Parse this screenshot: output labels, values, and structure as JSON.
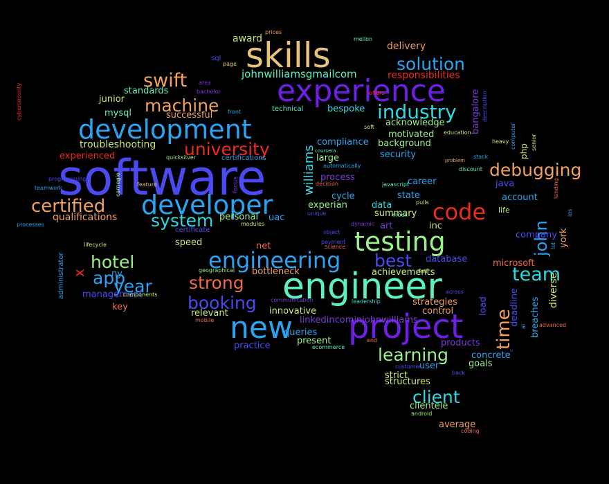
{
  "colors": {
    "bg": "#000000",
    "blue": "#4a4af0",
    "violet": "#6e1fe6",
    "skyblue": "#2ba3f0",
    "cyan": "#2fd8e0",
    "mint": "#5ef0c0",
    "green": "#9cf28a",
    "lime": "#c8e87a",
    "tan": "#e6c27a",
    "orange": "#f0a060",
    "red": "#ee2a20",
    "coral": "#f06848",
    "purple": "#7a3ad8"
  },
  "words": [
    {
      "text": "software",
      "color": "blue"
    },
    {
      "text": "engineer",
      "color": "mint"
    },
    {
      "text": "skills",
      "color": "tan"
    },
    {
      "text": "experience",
      "color": "violet"
    },
    {
      "text": "project",
      "color": "violet"
    },
    {
      "text": "development",
      "color": "skyblue"
    },
    {
      "text": "developer",
      "color": "skyblue"
    },
    {
      "text": "new",
      "color": "skyblue"
    },
    {
      "text": "testing",
      "color": "green"
    },
    {
      "text": "engineering",
      "color": "skyblue"
    },
    {
      "text": "code",
      "color": "red"
    },
    {
      "text": "industry",
      "color": "cyan"
    },
    {
      "text": "solution",
      "color": "skyblue"
    },
    {
      "text": "certified",
      "color": "orange"
    },
    {
      "text": "university",
      "color": "red"
    },
    {
      "text": "machine",
      "color": "orange"
    },
    {
      "text": "swift",
      "color": "orange"
    },
    {
      "text": "system",
      "color": "cyan"
    },
    {
      "text": "hotel",
      "color": "green"
    },
    {
      "text": "booking",
      "color": "blue"
    },
    {
      "text": "strong",
      "color": "coral"
    },
    {
      "text": "year",
      "color": "skyblue"
    },
    {
      "text": "best",
      "color": "blue"
    },
    {
      "text": "learning",
      "color": "green"
    },
    {
      "text": "client",
      "color": "cyan"
    },
    {
      "text": "debugging",
      "color": "orange"
    },
    {
      "text": "team",
      "color": "cyan"
    },
    {
      "text": "app",
      "color": "skyblue"
    },
    {
      "text": "time",
      "color": "orange"
    },
    {
      "text": "john",
      "color": "skyblue"
    },
    {
      "text": "x",
      "color": "red"
    },
    {
      "text": "williams",
      "color": "cyan"
    },
    {
      "text": "johnwilliamsgmailcom",
      "color": "mint"
    },
    {
      "text": "responsibilities",
      "color": "red"
    },
    {
      "text": "award",
      "color": "lime"
    },
    {
      "text": "delivery",
      "color": "orange"
    },
    {
      "text": "standards",
      "color": "mint"
    },
    {
      "text": "junior",
      "color": "lime"
    },
    {
      "text": "mysql",
      "color": "mint"
    },
    {
      "text": "successful",
      "color": "orange"
    },
    {
      "text": "troubleshooting",
      "color": "lime"
    },
    {
      "text": "experienced",
      "color": "red"
    },
    {
      "text": "qualifications",
      "color": "orange"
    },
    {
      "text": "bespoke",
      "color": "cyan"
    },
    {
      "text": "technical",
      "color": "mint"
    },
    {
      "text": "acknowledge",
      "color": "green"
    },
    {
      "text": "motivated",
      "color": "green"
    },
    {
      "text": "background",
      "color": "green"
    },
    {
      "text": "security",
      "color": "skyblue"
    },
    {
      "text": "compliance",
      "color": "skyblue"
    },
    {
      "text": "large",
      "color": "green"
    },
    {
      "text": "process",
      "color": "purple"
    },
    {
      "text": "career",
      "color": "skyblue"
    },
    {
      "text": "state",
      "color": "skyblue"
    },
    {
      "text": "experian",
      "color": "green"
    },
    {
      "text": "cycle",
      "color": "skyblue"
    },
    {
      "text": "data",
      "color": "cyan"
    },
    {
      "text": "summary",
      "color": "lime"
    },
    {
      "text": "art",
      "color": "purple"
    },
    {
      "text": "inc",
      "color": "lime"
    },
    {
      "text": "personal",
      "color": "green"
    },
    {
      "text": "uac",
      "color": "skyblue"
    },
    {
      "text": "speed",
      "color": "lime"
    },
    {
      "text": "net",
      "color": "coral"
    },
    {
      "text": "bottleneck",
      "color": "orange"
    },
    {
      "text": "achievements",
      "color": "lime"
    },
    {
      "text": "database",
      "color": "blue"
    },
    {
      "text": "ny",
      "color": "skyblue"
    },
    {
      "text": "management",
      "color": "blue"
    },
    {
      "text": "key",
      "color": "coral"
    },
    {
      "text": "relevant",
      "color": "lime"
    },
    {
      "text": "innovative",
      "color": "lime"
    },
    {
      "text": "linkedincominjohnwilliams",
      "color": "purple"
    },
    {
      "text": "queries",
      "color": "skyblue"
    },
    {
      "text": "present",
      "color": "green"
    },
    {
      "text": "practice",
      "color": "blue"
    },
    {
      "text": "strategies",
      "color": "orange"
    },
    {
      "text": "control",
      "color": "orange"
    },
    {
      "text": "products",
      "color": "purple"
    },
    {
      "text": "concrete",
      "color": "skyblue"
    },
    {
      "text": "goals",
      "color": "green"
    },
    {
      "text": "user",
      "color": "skyblue"
    },
    {
      "text": "strict",
      "color": "lime"
    },
    {
      "text": "structures",
      "color": "lime"
    },
    {
      "text": "clientele",
      "color": "green"
    },
    {
      "text": "average",
      "color": "orange"
    },
    {
      "text": "java",
      "color": "blue"
    },
    {
      "text": "account",
      "color": "skyblue"
    },
    {
      "text": "life",
      "color": "lime"
    },
    {
      "text": "company",
      "color": "blue"
    },
    {
      "text": "microsoft",
      "color": "coral"
    },
    {
      "text": "php",
      "color": "lime"
    },
    {
      "text": "load",
      "color": "blue"
    },
    {
      "text": "deadline",
      "color": "blue"
    },
    {
      "text": "breaches",
      "color": "skyblue"
    },
    {
      "text": "diverse",
      "color": "lime"
    },
    {
      "text": "york",
      "color": "orange"
    },
    {
      "text": "bangalore",
      "color": "purple"
    },
    {
      "text": "administrator",
      "color": "skyblue"
    },
    {
      "text": "prices",
      "color": "orange"
    },
    {
      "text": "mellon",
      "color": "mint"
    },
    {
      "text": "sql",
      "color": "blue"
    },
    {
      "text": "page",
      "color": "tan"
    },
    {
      "text": "area",
      "color": "purple"
    },
    {
      "text": "bachelor",
      "color": "purple"
    },
    {
      "text": "front",
      "color": "skyblue"
    },
    {
      "text": "soft",
      "color": "lime"
    },
    {
      "text": "certifications",
      "color": "skyblue"
    },
    {
      "text": "quicksilver",
      "color": "green"
    },
    {
      "text": "certificate",
      "color": "blue"
    },
    {
      "text": "modules",
      "color": "lime"
    },
    {
      "text": "coursera",
      "color": "mint"
    },
    {
      "text": "automatically",
      "color": "skyblue"
    },
    {
      "text": "decision",
      "color": "coral"
    },
    {
      "text": "javascript",
      "color": "mint"
    },
    {
      "text": "unique",
      "color": "blue"
    },
    {
      "text": "mock",
      "color": "mint"
    },
    {
      "text": "dynamic",
      "color": "purple"
    },
    {
      "text": "object",
      "color": "blue"
    },
    {
      "text": "payment",
      "color": "blue"
    },
    {
      "text": "science",
      "color": "coral"
    },
    {
      "text": "full",
      "color": "lime"
    },
    {
      "text": "leadership",
      "color": "cyan"
    },
    {
      "text": "communication",
      "color": "purple"
    },
    {
      "text": "across",
      "color": "blue"
    },
    {
      "text": "end",
      "color": "coral"
    },
    {
      "text": "ecommerce",
      "color": "mint"
    },
    {
      "text": "customer",
      "color": "blue"
    },
    {
      "text": "back",
      "color": "blue"
    },
    {
      "text": "android",
      "color": "green"
    },
    {
      "text": "coding",
      "color": "coral"
    },
    {
      "text": "pulls",
      "color": "lime"
    },
    {
      "text": "education",
      "color": "lime"
    },
    {
      "text": "problem",
      "color": "orange"
    },
    {
      "text": "discount",
      "color": "mint"
    },
    {
      "text": "heavy",
      "color": "lime"
    },
    {
      "text": "stack",
      "color": "skyblue"
    },
    {
      "text": "teamwork",
      "color": "skyblue"
    },
    {
      "text": "programming",
      "color": "blue"
    },
    {
      "text": "feature",
      "color": "tan"
    },
    {
      "text": "processes",
      "color": "skyblue"
    },
    {
      "text": "lifecycle",
      "color": "lime"
    },
    {
      "text": "components",
      "color": "lime"
    },
    {
      "text": "geographical",
      "color": "green"
    },
    {
      "text": "mobile",
      "color": "coral"
    },
    {
      "text": "advanced",
      "color": "coral"
    },
    {
      "text": "offers",
      "color": "red"
    },
    {
      "text": "focus",
      "color": "purple"
    },
    {
      "text": "carnegie",
      "color": "green"
    },
    {
      "text": "cybersecurity",
      "color": "red"
    },
    {
      "text": "description",
      "color": "blue"
    },
    {
      "text": "computer",
      "color": "skyblue"
    },
    {
      "text": "senior",
      "color": "lime"
    },
    {
      "text": "lot",
      "color": "skyblue"
    },
    {
      "text": "landing",
      "color": "coral"
    },
    {
      "text": "ios",
      "color": "skyblue"
    },
    {
      "text": "ai",
      "color": "skyblue"
    },
    {
      "text": "c",
      "color": "blue"
    }
  ]
}
